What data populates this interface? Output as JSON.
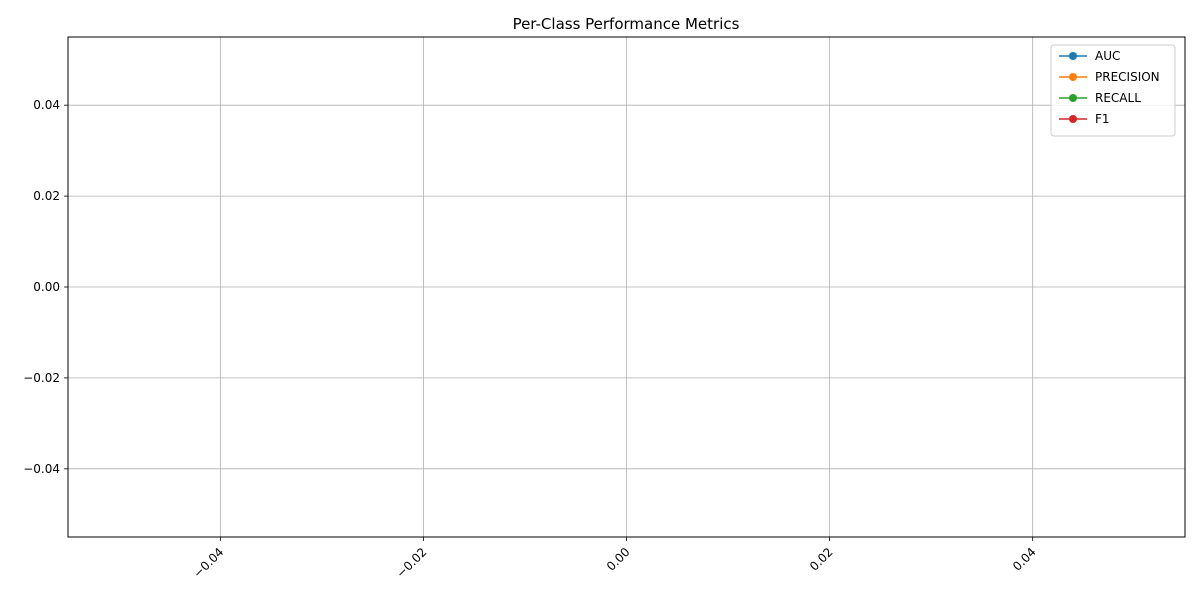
{
  "chart_data": {
    "type": "line",
    "title": "Per-Class Performance Metrics",
    "xlabel": "",
    "ylabel": "",
    "xlim": [
      -0.055,
      0.055
    ],
    "ylim": [
      -0.055,
      0.055
    ],
    "x_ticks": [
      -0.04,
      -0.02,
      0.0,
      0.02,
      0.04
    ],
    "x_tick_labels": [
      "−0.04",
      "−0.02",
      "0.00",
      "0.02",
      "0.04"
    ],
    "y_ticks": [
      0.04,
      0.02,
      0.0,
      -0.02,
      -0.04
    ],
    "y_tick_labels": [
      "0.04",
      "0.02",
      "0.00",
      "−0.02",
      "−0.04"
    ],
    "x_tick_rotation_deg": 45,
    "grid": true,
    "legend_position": "top-right",
    "categories": [],
    "series": [
      {
        "name": "AUC",
        "color": "#1f77b4",
        "marker": "circle",
        "values": []
      },
      {
        "name": "PRECISION",
        "color": "#ff7f0e",
        "marker": "circle",
        "values": []
      },
      {
        "name": "RECALL",
        "color": "#2ca02c",
        "marker": "circle",
        "values": []
      },
      {
        "name": "F1",
        "color": "#d62728",
        "marker": "circle",
        "values": []
      }
    ]
  }
}
